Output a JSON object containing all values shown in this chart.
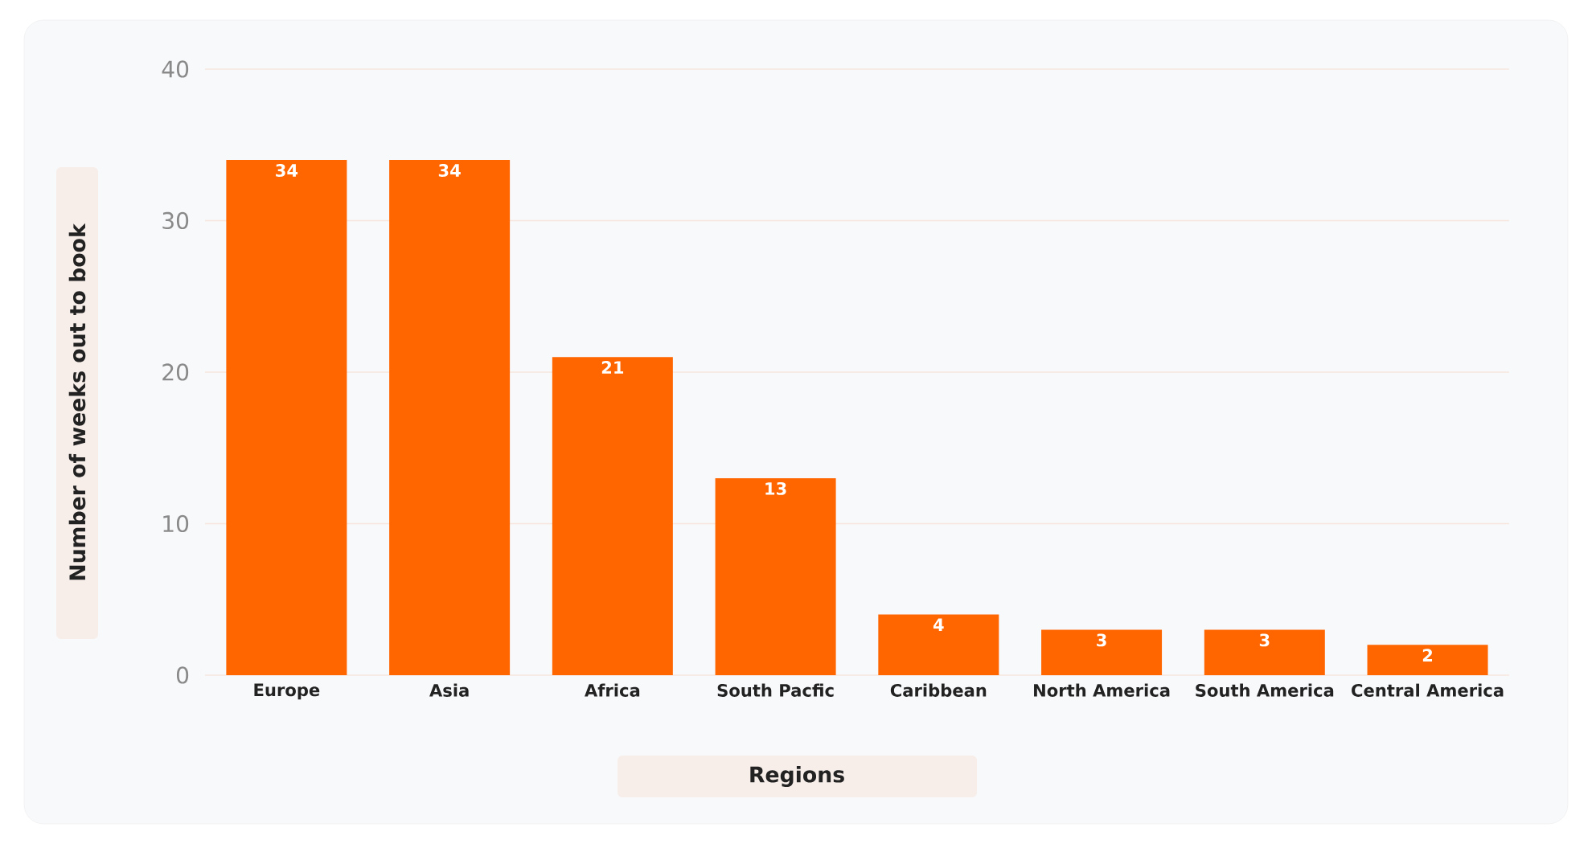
{
  "chart_data": {
    "type": "bar",
    "xlabel": "Regions",
    "ylabel": "Number of weeks out to book",
    "categories": [
      "Europe",
      "Asia",
      "Africa",
      "South Pacfic",
      "Caribbean",
      "North America",
      "South America",
      "Central America"
    ],
    "values": [
      34,
      34,
      21,
      13,
      4,
      3,
      3,
      2
    ],
    "color": "#ff6600",
    "ylim": [
      0,
      40
    ],
    "yticks": [
      0,
      10,
      20,
      30,
      40
    ],
    "grid": "y",
    "data_labels": true
  }
}
